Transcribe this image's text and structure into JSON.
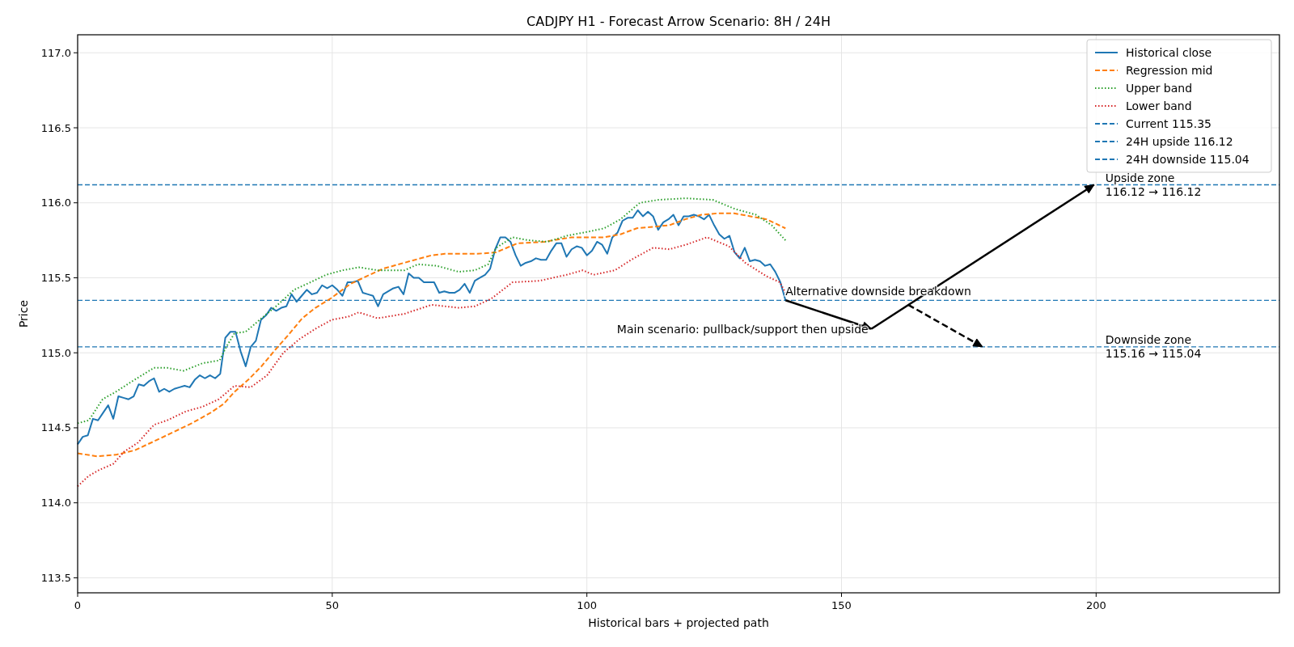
{
  "chart_data": {
    "type": "line",
    "title": "CADJPY H1 - Forecast Arrow Scenario: 8H / 24H",
    "xlabel": "Historical bars + projected path",
    "ylabel": "Price",
    "xlim": [
      0,
      236
    ],
    "ylim": [
      113.4,
      117.12
    ],
    "xticks": [
      0,
      50,
      100,
      150,
      200
    ],
    "yticks": [
      113.5,
      {
        "value": 114,
        "label": "114.0"
      },
      114.5,
      {
        "value": 115,
        "label": "115.0"
      },
      115.5,
      {
        "value": 116,
        "label": "116.0"
      },
      116.5,
      {
        "value": 117,
        "label": "117.0"
      }
    ],
    "grid": true,
    "legend": "top right",
    "series": [
      {
        "name": "Historical close",
        "color": "#1f77b4",
        "line_style": "solid",
        "x": [
          0,
          1,
          2,
          3,
          4,
          5,
          6,
          7,
          8,
          9,
          10,
          11,
          12,
          13,
          14,
          15,
          16,
          17,
          18,
          19,
          20,
          21,
          22,
          23,
          24,
          25,
          26,
          27,
          28,
          29,
          30,
          31,
          32,
          33,
          34,
          35,
          36,
          37,
          38,
          39,
          40,
          41,
          42,
          43,
          44,
          45,
          46,
          47,
          48,
          49,
          50,
          51,
          52,
          53,
          54,
          55,
          56,
          57,
          58,
          59,
          60,
          61,
          62,
          63,
          64,
          65,
          66,
          67,
          68,
          69,
          70,
          71,
          72,
          73,
          74,
          75,
          76,
          77,
          78,
          79,
          80,
          81,
          82,
          83,
          84,
          85,
          86,
          87,
          88,
          89,
          90,
          91,
          92,
          93,
          94,
          95,
          96,
          97,
          98,
          99,
          100,
          101,
          102,
          103,
          104,
          105,
          106,
          107,
          108,
          109,
          110,
          111,
          112,
          113,
          114,
          115,
          116,
          117,
          118,
          119,
          120,
          121,
          122,
          123,
          124,
          125,
          126,
          127,
          128,
          129,
          130,
          131,
          132,
          133,
          134,
          135,
          136,
          137,
          138,
          139
        ],
        "values": [
          114.39,
          114.44,
          114.45,
          114.56,
          114.55,
          114.6,
          114.65,
          114.56,
          114.71,
          114.7,
          114.69,
          114.71,
          114.79,
          114.78,
          114.81,
          114.83,
          114.74,
          114.76,
          114.74,
          114.76,
          114.77,
          114.78,
          114.77,
          114.82,
          114.85,
          114.83,
          114.85,
          114.83,
          114.86,
          115.1,
          115.14,
          115.14,
          115.01,
          114.91,
          115.04,
          115.08,
          115.22,
          115.25,
          115.3,
          115.28,
          115.3,
          115.31,
          115.39,
          115.34,
          115.38,
          115.42,
          115.39,
          115.4,
          115.45,
          115.43,
          115.45,
          115.42,
          115.38,
          115.47,
          115.47,
          115.48,
          115.4,
          115.39,
          115.38,
          115.31,
          115.39,
          115.41,
          115.43,
          115.44,
          115.39,
          115.53,
          115.5,
          115.5,
          115.47,
          115.47,
          115.47,
          115.4,
          115.41,
          115.4,
          115.4,
          115.42,
          115.46,
          115.4,
          115.48,
          115.5,
          115.52,
          115.56,
          115.69,
          115.77,
          115.77,
          115.74,
          115.65,
          115.58,
          115.6,
          115.61,
          115.63,
          115.62,
          115.62,
          115.68,
          115.73,
          115.73,
          115.64,
          115.69,
          115.71,
          115.7,
          115.65,
          115.68,
          115.74,
          115.72,
          115.66,
          115.77,
          115.8,
          115.88,
          115.9,
          115.9,
          115.95,
          115.91,
          115.94,
          115.91,
          115.82,
          115.87,
          115.89,
          115.92,
          115.85,
          115.91,
          115.91,
          115.92,
          115.91,
          115.89,
          115.92,
          115.85,
          115.79,
          115.76,
          115.78,
          115.67,
          115.63,
          115.7,
          115.61,
          115.62,
          115.61,
          115.58,
          115.59,
          115.54,
          115.47,
          115.35
        ]
      },
      {
        "name": "Regression mid",
        "color": "#ff7f0e",
        "line_style": "dashed",
        "x": [
          0,
          3.8,
          7.5,
          11.2,
          15,
          18.1,
          22.4,
          26.1,
          28.7,
          30.8,
          33.5,
          36.1,
          38.8,
          41.4,
          44.1,
          46.7,
          49.6,
          53.6,
          59.9,
          65.2,
          69.5,
          72.1,
          78.5,
          82.2,
          86.4,
          91.7,
          97,
          103.4,
          106.6,
          109.8,
          113,
          116.2,
          119.3,
          122.5,
          125.7,
          128.9,
          132.1,
          135.3,
          139
        ],
        "values": [
          114.33,
          114.31,
          114.32,
          114.35,
          114.41,
          114.46,
          114.53,
          114.6,
          114.66,
          114.74,
          114.82,
          114.91,
          115.02,
          115.12,
          115.23,
          115.3,
          115.36,
          115.46,
          115.56,
          115.61,
          115.65,
          115.66,
          115.66,
          115.67,
          115.73,
          115.74,
          115.77,
          115.77,
          115.79,
          115.83,
          115.84,
          115.85,
          115.89,
          115.92,
          115.93,
          115.93,
          115.91,
          115.89,
          115.83
        ]
      },
      {
        "name": "Upper band",
        "color": "#2ca02c",
        "line_style": "dotted",
        "x": [
          0,
          2.2,
          4.9,
          7.5,
          10.7,
          15,
          17.6,
          20.8,
          24.5,
          27.9,
          29.2,
          30.8,
          33,
          36.1,
          39.3,
          42.5,
          45.7,
          48.8,
          52,
          55.2,
          58.9,
          64.2,
          66.8,
          70.5,
          74.8,
          78,
          80.6,
          82.2,
          85.4,
          88.6,
          92.3,
          96,
          99.2,
          103.4,
          106.6,
          110.4,
          114.1,
          119.4,
          124.7,
          129,
          133.2,
          136.3,
          139
        ],
        "values": [
          114.53,
          114.55,
          114.69,
          114.74,
          114.81,
          114.9,
          114.9,
          114.88,
          114.93,
          114.95,
          115.04,
          115.13,
          115.14,
          115.23,
          115.32,
          115.42,
          115.47,
          115.52,
          115.55,
          115.57,
          115.55,
          115.55,
          115.59,
          115.58,
          115.54,
          115.55,
          115.59,
          115.7,
          115.77,
          115.75,
          115.74,
          115.78,
          115.8,
          115.83,
          115.89,
          116.0,
          116.02,
          116.03,
          116.02,
          115.96,
          115.92,
          115.85,
          115.75
        ]
      },
      {
        "name": "Lower band",
        "color": "#d62728",
        "line_style": "dotted",
        "x": [
          0,
          2.2,
          4.3,
          7,
          9.1,
          11.8,
          15,
          17.6,
          21.3,
          24.5,
          27.7,
          30.8,
          34,
          37.2,
          40.4,
          43.5,
          46.7,
          49.9,
          53.1,
          55.2,
          58.9,
          64.2,
          69.5,
          74.8,
          78,
          81.2,
          85.4,
          90.7,
          96,
          99.2,
          101.3,
          105.5,
          108.7,
          113,
          116.2,
          119.4,
          123.6,
          127.9,
          131.1,
          135.3,
          137.9,
          139
        ],
        "values": [
          114.11,
          114.18,
          114.22,
          114.26,
          114.34,
          114.4,
          114.52,
          114.55,
          114.61,
          114.64,
          114.69,
          114.78,
          114.77,
          114.85,
          115.0,
          115.09,
          115.16,
          115.22,
          115.24,
          115.27,
          115.23,
          115.26,
          115.32,
          115.3,
          115.31,
          115.36,
          115.47,
          115.48,
          115.52,
          115.55,
          115.52,
          115.55,
          115.62,
          115.7,
          115.69,
          115.72,
          115.77,
          115.71,
          115.6,
          115.51,
          115.47,
          115.4
        ]
      },
      {
        "color": "#000000",
        "line_style": "solid",
        "x": [
          139,
          155.9
        ],
        "values": [
          115.35,
          115.16
        ]
      },
      {
        "color": "#000000",
        "line_style": "solid",
        "x": [
          155.9,
          199.6
        ],
        "values": [
          115.16,
          116.12
        ]
      },
      {
        "color": "#000000",
        "line_style": "dashed",
        "x": [
          163.1,
          177.7
        ],
        "values": [
          115.32,
          115.04
        ]
      }
    ],
    "ref_lines": [
      {
        "axis": "y",
        "value": 115.35,
        "label": "Current 115.35",
        "color": "#1f77b4",
        "line_style": "dashed"
      },
      {
        "axis": "y",
        "value": 116.12,
        "label": "24H upside 116.12",
        "color": "#1f77b4",
        "line_style": "dashed"
      },
      {
        "axis": "y",
        "value": 115.04,
        "label": "24H downside 115.04",
        "color": "#1f77b4",
        "line_style": "dashed"
      }
    ],
    "annotations": [
      "Main scenario: pullback/support then upside",
      "Alternative downside breakdown",
      "Upside zone\n116.12 → 116.12",
      "Downside zone\n115.16 → 115.04"
    ]
  }
}
